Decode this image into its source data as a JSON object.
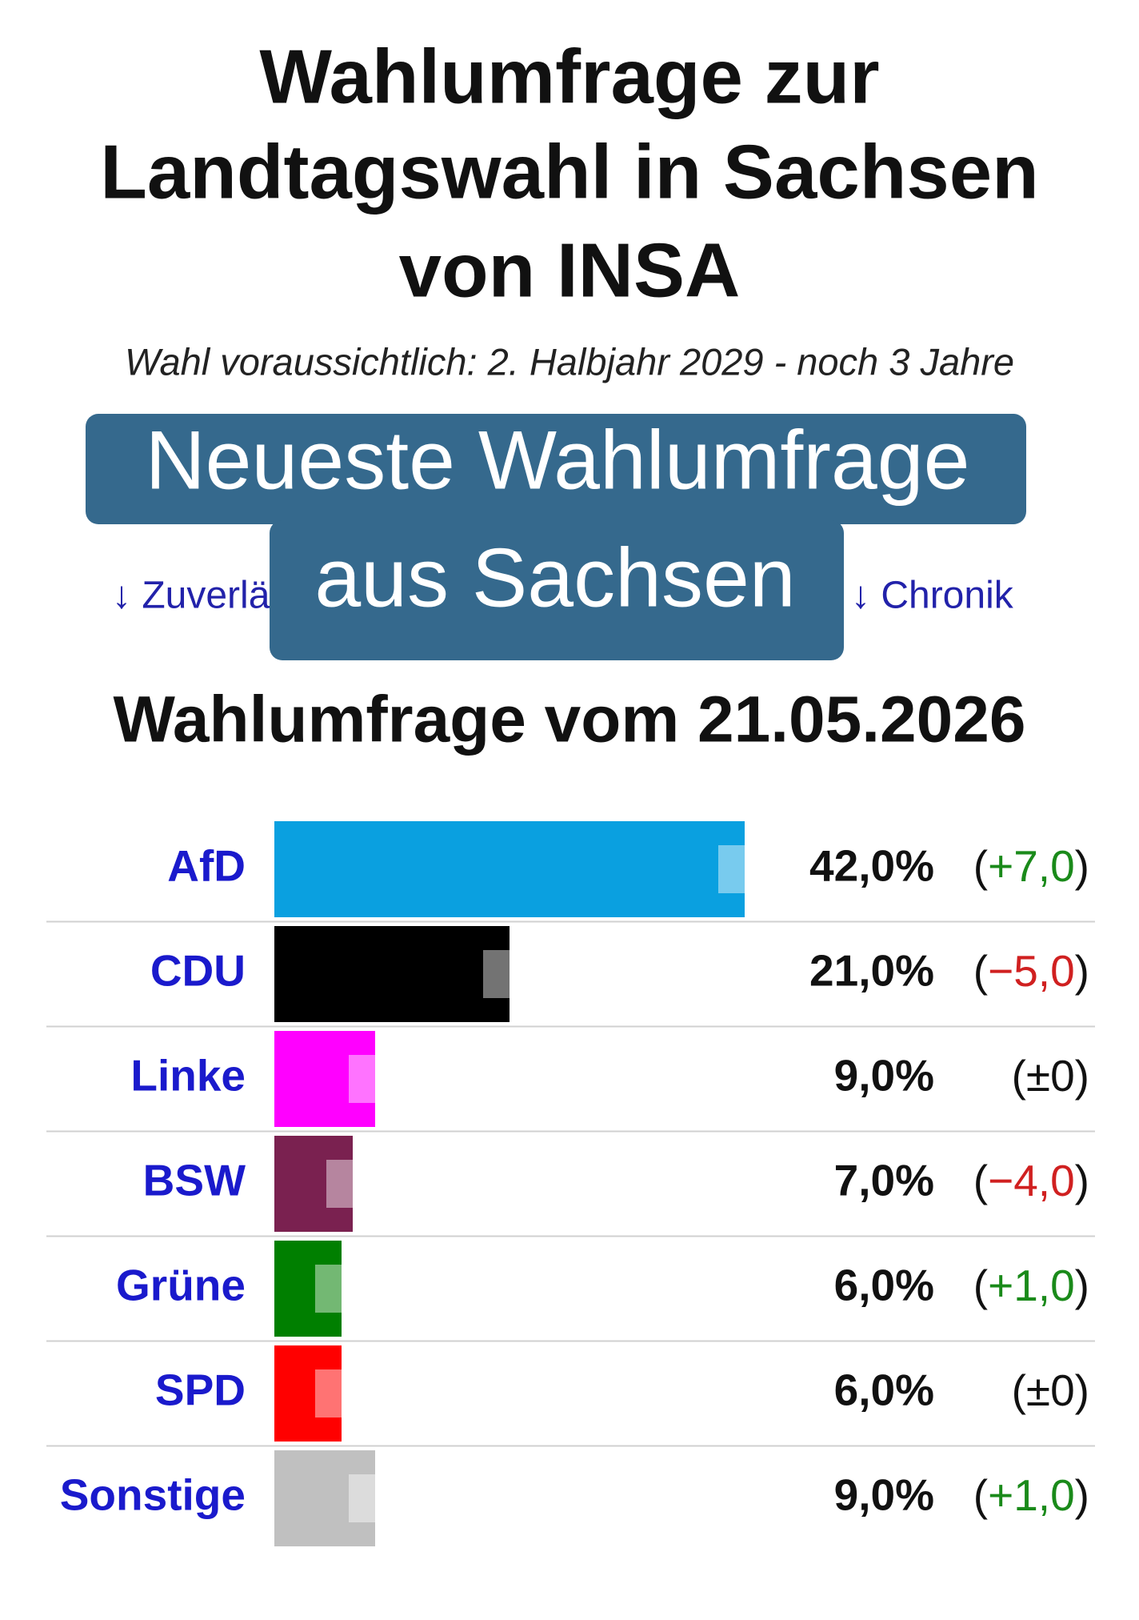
{
  "chart_data": {
    "type": "hbar",
    "title": [
      "Wahlumfrage zur",
      "Landtagswahl in Sachsen",
      "von INSA"
    ],
    "subtitle": "Wahl voraussichtlich: 2. Halbjahr 2029 - noch 3 Jahre",
    "banner": [
      "Neueste Wahlumfrage",
      "aus Sachsen"
    ],
    "links": [
      "↓ Zuverlässigkeit",
      "↓ Chronik"
    ],
    "heading": "Wahlumfrage vom 21.05.2026",
    "categories": [
      "AfD",
      "CDU",
      "Linke",
      "BSW",
      "Grüne",
      "SPD",
      "Sonstige"
    ],
    "values": [
      42,
      21,
      9,
      7,
      6,
      6,
      9
    ],
    "value_labels": [
      "42,0%",
      "21,0%",
      "9,0%",
      "7,0%",
      "6,0%",
      "6,0%",
      "9,0%"
    ],
    "colors": [
      "#0aa0e0",
      "#000000",
      "#ff00ff",
      "#7a2150",
      "#007f00",
      "#ff0000",
      "#c0c0c0"
    ],
    "changes": [
      7,
      -5,
      0,
      -4,
      1,
      0,
      1
    ],
    "change_labels": [
      "(+7,0)",
      "(−5,0)",
      "(±0)",
      "(−4,0)",
      "(+1,0)",
      "(±0)",
      "(+1,0)"
    ],
    "change_colors": {
      "up": "#1a8a1a",
      "down": "#d02020",
      "none": "#111111"
    },
    "xlim": [
      0,
      60
    ]
  }
}
